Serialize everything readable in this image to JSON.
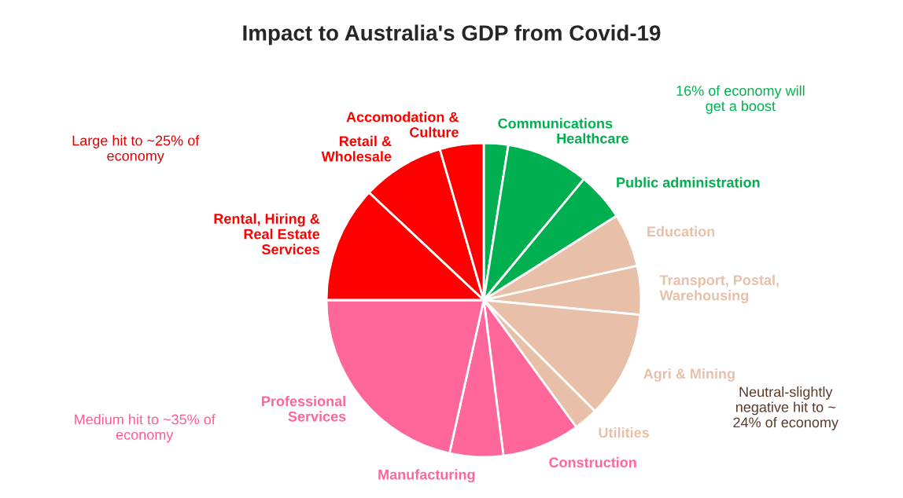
{
  "chart_data": {
    "type": "pie",
    "title": "Impact to Australia's GDP from Covid-19",
    "categories": [
      "Communications",
      "Healthcare",
      "Public administration",
      "Education",
      "Transport, Postal,\nWarehousing",
      "Agri & Mining",
      "Utilities",
      "Construction",
      "Manufacturing",
      "Professional\nServices",
      "Rental, Hiring &\nReal Estate\nServices",
      "Retail &\nWholesale",
      "Accomodation &\nCulture"
    ],
    "values": [
      2.5,
      8.5,
      5,
      5.5,
      5,
      11,
      2.5,
      8,
      5.5,
      21.5,
      12,
      8.5,
      4.5
    ],
    "colors": [
      "#00b050",
      "#00b050",
      "#00b050",
      "#e8c0aa",
      "#e8c0aa",
      "#e8c0aa",
      "#e8c0aa",
      "#ff6699",
      "#ff6699",
      "#ff6699",
      "#ff0000",
      "#ff0000",
      "#ff0000"
    ],
    "annotations": [
      "16% of economy will\nget a boost",
      "Large hit to ~25% of\neconomy",
      "Medium hit to ~35% of\neconomy",
      "Neutral-slightly\nnegative hit to ~\n24% of economy"
    ]
  }
}
